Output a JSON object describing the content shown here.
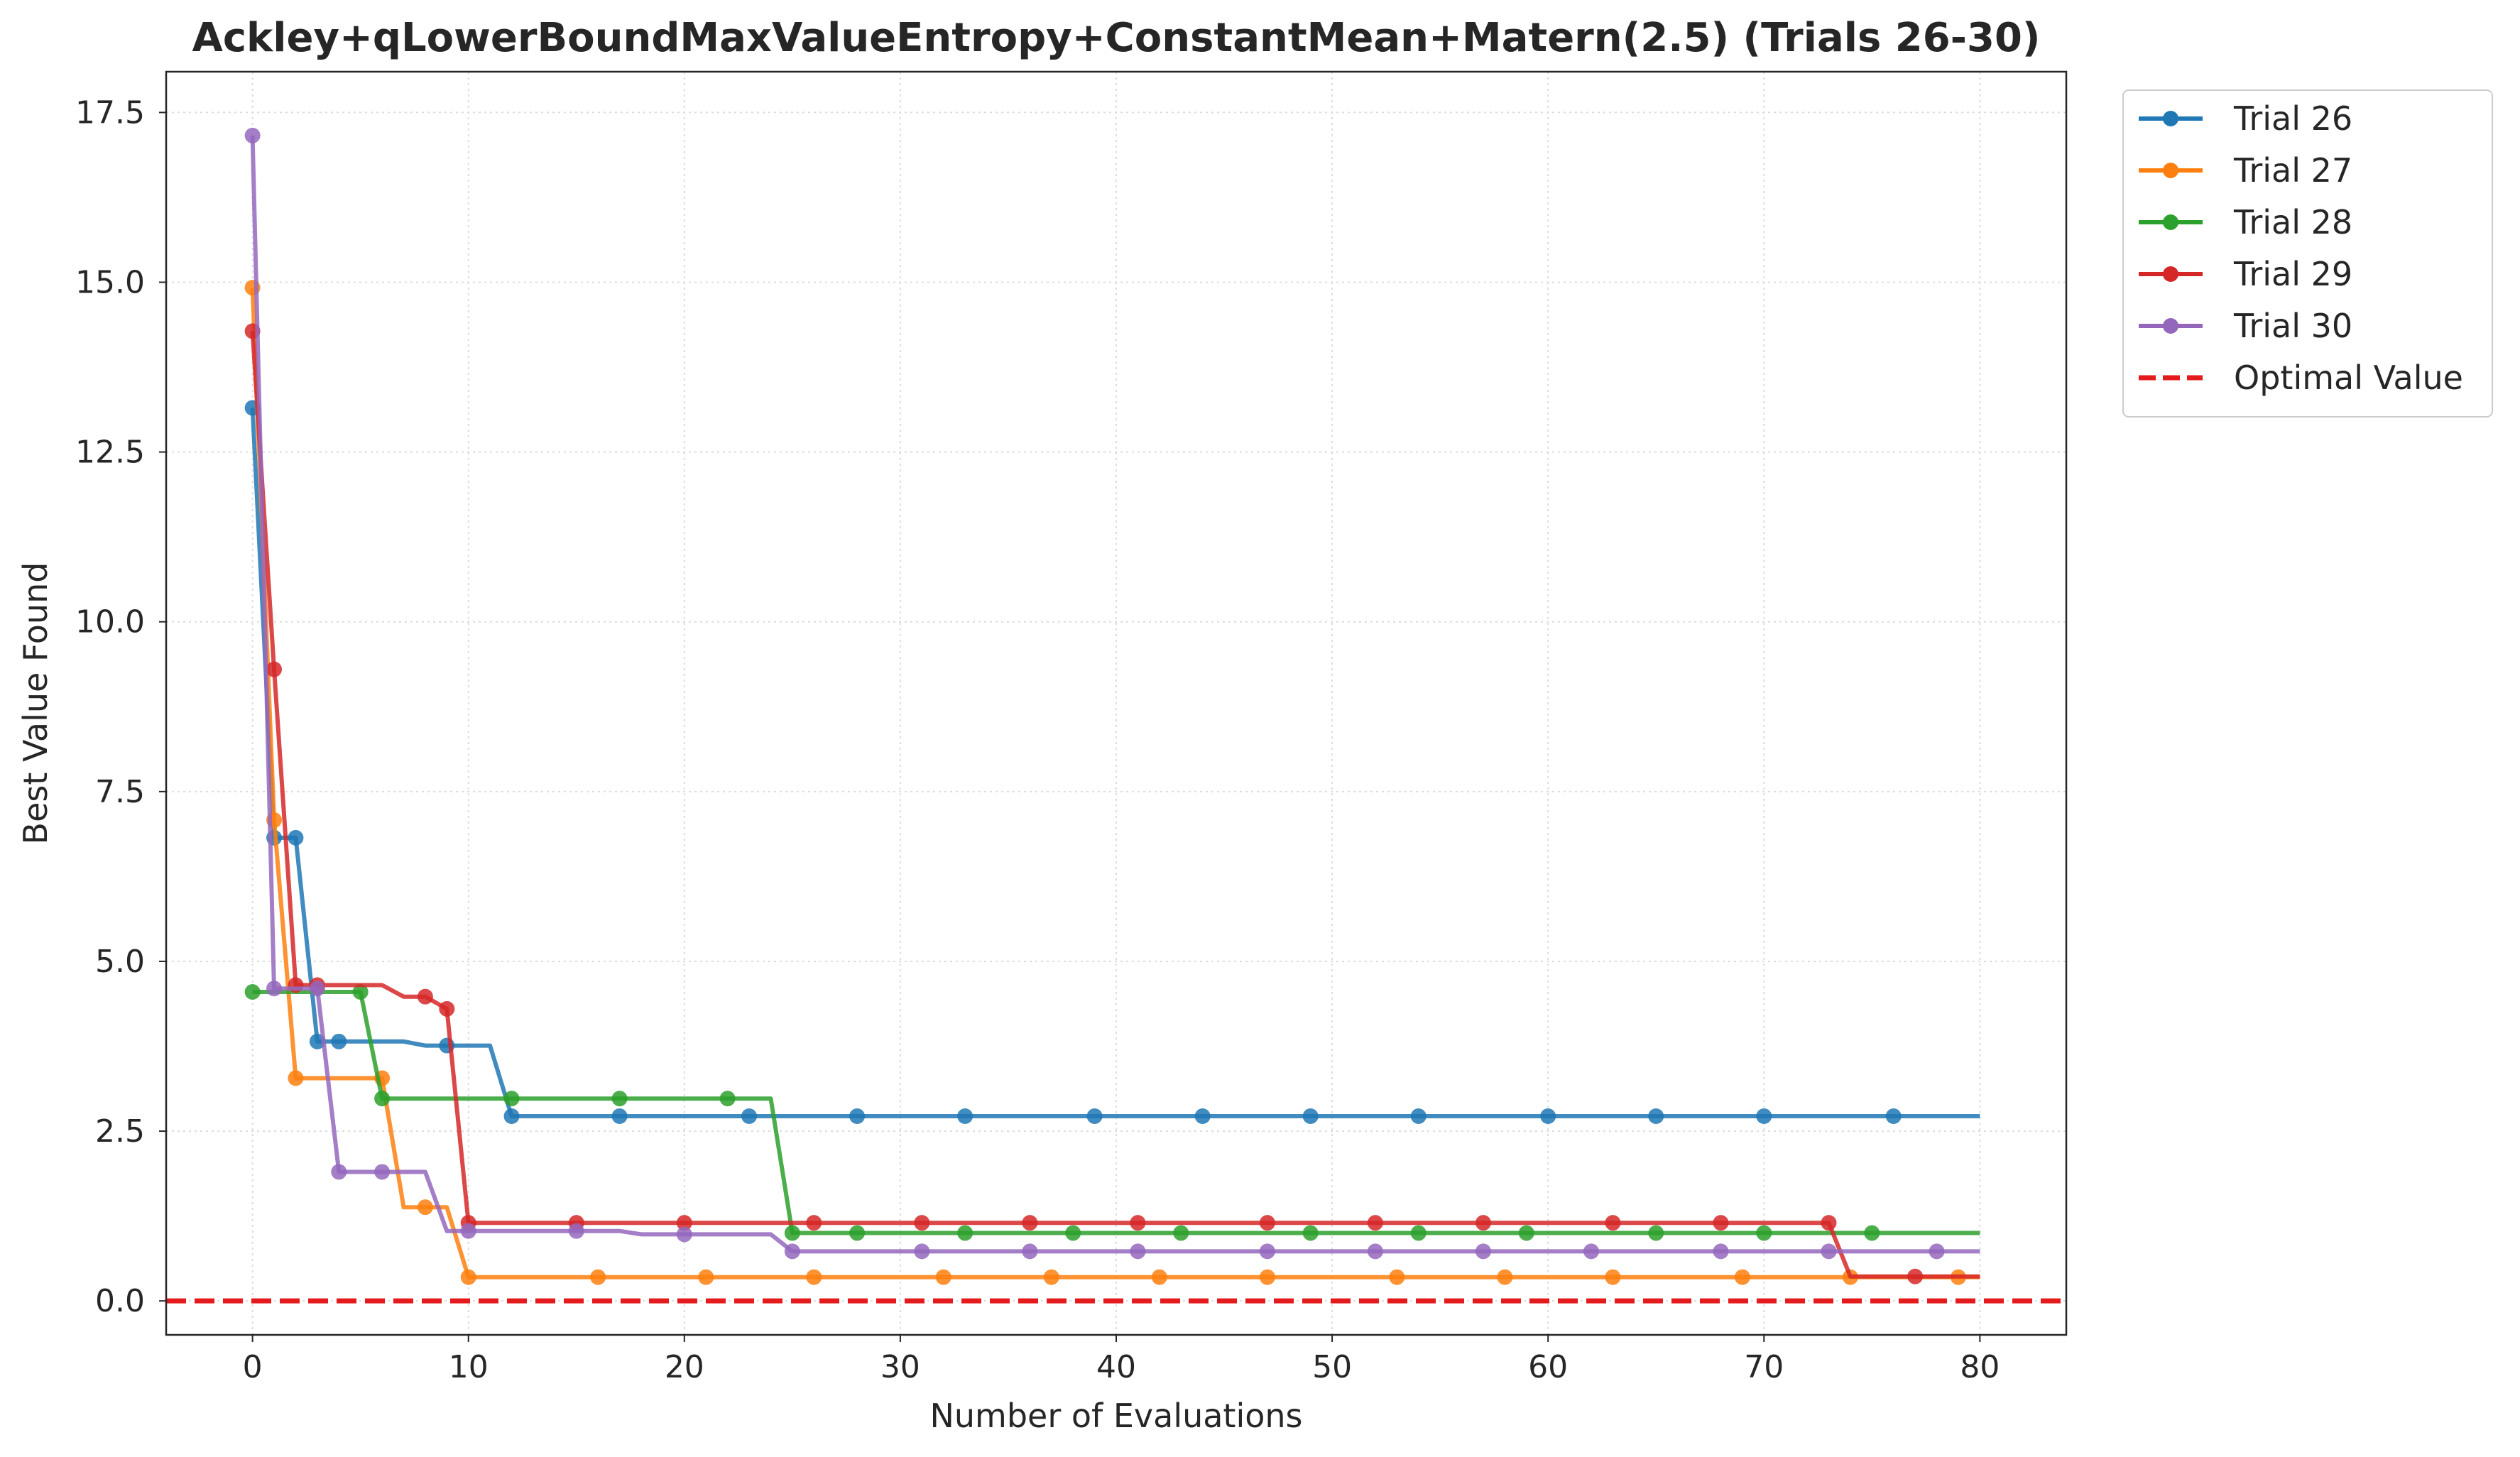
{
  "chart_data": {
    "type": "line",
    "title": "Ackley+qLowerBoundMaxValueEntropy+ConstantMean+Matern(2.5) (Trials 26-30)",
    "xlabel": "Number of Evaluations",
    "ylabel": "Best Value Found",
    "xlim": [
      -4,
      84
    ],
    "ylim": [
      -0.5,
      18.1
    ],
    "xticks": [
      0,
      10,
      20,
      30,
      40,
      50,
      60,
      70,
      80
    ],
    "xtick_labels": [
      "0",
      "10",
      "20",
      "30",
      "40",
      "50",
      "60",
      "70",
      "80"
    ],
    "yticks": [
      0,
      2.5,
      5,
      7.5,
      10,
      12.5,
      15,
      17.5
    ],
    "ytick_labels": [
      "0.0",
      "2.5",
      "5.0",
      "7.5",
      "10.0",
      "12.5",
      "15.0",
      "17.5"
    ],
    "grid": true,
    "legend_position": "outside-top-right",
    "reference_line": {
      "name": "Optimal Value",
      "y": 0,
      "color": "#e41a1c",
      "style": "dashed"
    },
    "series": [
      {
        "name": "Trial 26",
        "color": "#1f77b4",
        "steps": [
          [
            0,
            13.15
          ],
          [
            1,
            6.82
          ],
          [
            2,
            6.82
          ],
          [
            3,
            3.82
          ],
          [
            7,
            3.82
          ],
          [
            8,
            3.76
          ],
          [
            11,
            3.76
          ],
          [
            12,
            2.72
          ],
          [
            80,
            2.72
          ]
        ],
        "markers": [
          0,
          1,
          2,
          3,
          4,
          9,
          12,
          17,
          23,
          28,
          33,
          39,
          44,
          49,
          54,
          60,
          65,
          70,
          76
        ]
      },
      {
        "name": "Trial 27",
        "color": "#ff7f0e",
        "steps": [
          [
            0,
            14.92
          ],
          [
            1,
            7.08
          ],
          [
            2,
            3.28
          ],
          [
            6,
            3.28
          ],
          [
            7,
            1.38
          ],
          [
            9,
            1.38
          ],
          [
            10,
            0.35
          ],
          [
            80,
            0.35
          ]
        ],
        "markers": [
          0,
          1,
          2,
          6,
          8,
          10,
          16,
          21,
          26,
          32,
          37,
          42,
          47,
          53,
          58,
          63,
          69,
          74,
          79
        ]
      },
      {
        "name": "Trial 28",
        "color": "#2ca02c",
        "steps": [
          [
            0,
            4.55
          ],
          [
            5,
            4.55
          ],
          [
            6,
            2.98
          ],
          [
            24,
            2.98
          ],
          [
            25,
            1.0
          ],
          [
            80,
            1.0
          ]
        ],
        "markers": [
          0,
          5,
          6,
          12,
          17,
          22,
          25,
          28,
          33,
          38,
          43,
          49,
          54,
          59,
          65,
          70,
          75
        ]
      },
      {
        "name": "Trial 29",
        "color": "#d62728",
        "steps": [
          [
            0,
            14.28
          ],
          [
            1,
            9.3
          ],
          [
            2,
            4.65
          ],
          [
            6,
            4.65
          ],
          [
            7,
            4.48
          ],
          [
            8,
            4.48
          ],
          [
            9,
            4.3
          ],
          [
            10,
            1.15
          ],
          [
            73,
            1.15
          ],
          [
            74,
            0.36
          ],
          [
            80,
            0.36
          ]
        ],
        "markers": [
          0,
          1,
          2,
          3,
          8,
          9,
          10,
          15,
          20,
          26,
          31,
          36,
          41,
          47,
          52,
          57,
          63,
          68,
          73,
          77
        ]
      },
      {
        "name": "Trial 30",
        "color": "#9467bd",
        "steps": [
          [
            0,
            17.16
          ],
          [
            1,
            4.6
          ],
          [
            3,
            4.6
          ],
          [
            4,
            1.9
          ],
          [
            8,
            1.9
          ],
          [
            9,
            1.03
          ],
          [
            17,
            1.03
          ],
          [
            18,
            0.98
          ],
          [
            24,
            0.98
          ],
          [
            25,
            0.73
          ],
          [
            80,
            0.73
          ]
        ],
        "markers": [
          0,
          1,
          3,
          4,
          6,
          10,
          15,
          20,
          25,
          31,
          36,
          41,
          47,
          52,
          57,
          62,
          68,
          73,
          78
        ]
      }
    ]
  }
}
